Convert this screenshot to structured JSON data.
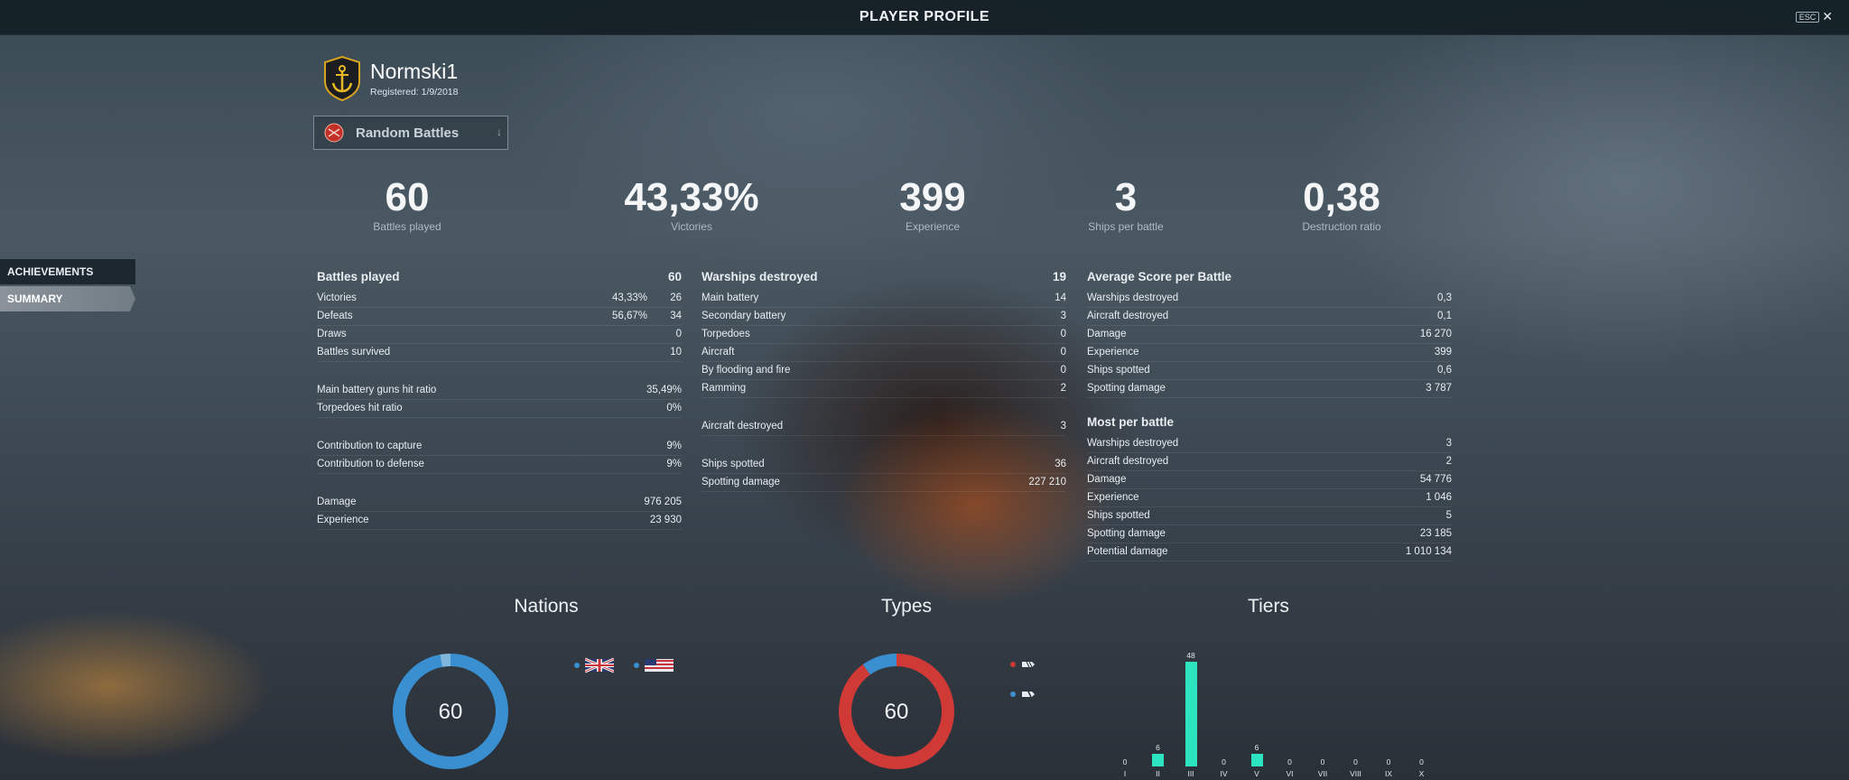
{
  "header": {
    "title": "PLAYER PROFILE",
    "esc_label": "ESC",
    "close_symbol": "✕"
  },
  "sidenav": {
    "items": [
      {
        "label": "ACHIEVEMENTS"
      },
      {
        "label": "SUMMARY"
      }
    ]
  },
  "player": {
    "name": "Normski1",
    "registered": "Registered: 1/9/2018"
  },
  "mode": {
    "label": "Random Battles",
    "arrow": "↓"
  },
  "big_stats": [
    {
      "value": "60",
      "label": "Battles played"
    },
    {
      "value": "43,33%",
      "label": "Victories"
    },
    {
      "value": "399",
      "label": "Experience"
    },
    {
      "value": "3",
      "label": "Ships per battle"
    },
    {
      "value": "0,38",
      "label": "Destruction ratio"
    }
  ],
  "col1": {
    "title": "Battles played",
    "title_value": "60",
    "rows": [
      {
        "k": "Victories",
        "p": "43,33%",
        "v": "26"
      },
      {
        "k": "Defeats",
        "p": "56,67%",
        "v": "34"
      },
      {
        "k": "Draws",
        "p": "",
        "v": "0"
      },
      {
        "k": "Battles survived",
        "p": "",
        "v": "10"
      }
    ],
    "rows2": [
      {
        "k": "Main battery guns hit ratio",
        "v": "35,49%"
      },
      {
        "k": "Torpedoes hit ratio",
        "v": "0%"
      }
    ],
    "rows3": [
      {
        "k": "Contribution to capture",
        "v": "9%"
      },
      {
        "k": "Contribution to defense",
        "v": "9%"
      }
    ],
    "rows4": [
      {
        "k": "Damage",
        "v": "976 205"
      },
      {
        "k": "Experience",
        "v": "23 930"
      }
    ]
  },
  "col2": {
    "title": "Warships destroyed",
    "title_value": "19",
    "rows": [
      {
        "k": "Main battery",
        "v": "14"
      },
      {
        "k": "Secondary battery",
        "v": "3"
      },
      {
        "k": "Torpedoes",
        "v": "0"
      },
      {
        "k": "Aircraft",
        "v": "0"
      },
      {
        "k": "By flooding and fire",
        "v": "0"
      },
      {
        "k": "Ramming",
        "v": "2"
      }
    ],
    "rows2": [
      {
        "k": "Aircraft destroyed",
        "v": "3"
      }
    ],
    "rows3": [
      {
        "k": "Ships spotted",
        "v": "36"
      },
      {
        "k": "Spotting damage",
        "v": "227 210"
      }
    ]
  },
  "col3": {
    "title": "Average Score per Battle",
    "rows": [
      {
        "k": "Warships destroyed",
        "v": "0,3"
      },
      {
        "k": "Aircraft destroyed",
        "v": "0,1"
      },
      {
        "k": "Damage",
        "v": "16 270"
      },
      {
        "k": "Experience",
        "v": "399"
      },
      {
        "k": "Ships spotted",
        "v": "0,6"
      },
      {
        "k": "Spotting damage",
        "v": "3 787"
      }
    ],
    "title2": "Most per battle",
    "rows2": [
      {
        "k": "Warships destroyed",
        "v": "3"
      },
      {
        "k": "Aircraft destroyed",
        "v": "2"
      },
      {
        "k": "Damage",
        "v": "54 776"
      },
      {
        "k": "Experience",
        "v": "1 046"
      },
      {
        "k": "Ships spotted",
        "v": "5"
      },
      {
        "k": "Spotting damage",
        "v": "23 185"
      },
      {
        "k": "Potential damage",
        "v": "1 010 134"
      }
    ]
  },
  "nations": {
    "title": "Nations",
    "total": "60",
    "segments": [
      {
        "color": "#3a8fd0",
        "fraction": 0.97
      },
      {
        "color": "#7fb6de",
        "fraction": 0.03
      }
    ],
    "legend": [
      {
        "color": "#3a8fd0",
        "icon": "uk-flag-icon"
      },
      {
        "color": "#3a8fd0",
        "icon": "us-flag-icon"
      }
    ]
  },
  "types": {
    "title": "Types",
    "total": "60",
    "segments": [
      {
        "color": "#cf3a36",
        "fraction": 0.9
      },
      {
        "color": "#3a8fd0",
        "fraction": 0.1
      }
    ],
    "legend": [
      {
        "color": "#cf3a36",
        "icon": "cruiser-icon"
      },
      {
        "color": "#3a8fd0",
        "icon": "battleship-icon"
      }
    ]
  },
  "tiers": {
    "title": "Tiers",
    "bar_color": "#2ee4c0",
    "items": [
      {
        "label": "I",
        "count": "0",
        "value": 0
      },
      {
        "label": "II",
        "count": "6",
        "value": 6
      },
      {
        "label": "III",
        "count": "48",
        "value": 48
      },
      {
        "label": "IV",
        "count": "0",
        "value": 0
      },
      {
        "label": "V",
        "count": "6",
        "value": 6
      },
      {
        "label": "VI",
        "count": "0",
        "value": 0
      },
      {
        "label": "VII",
        "count": "0",
        "value": 0
      },
      {
        "label": "VIII",
        "count": "0",
        "value": 0
      },
      {
        "label": "IX",
        "count": "0",
        "value": 0
      },
      {
        "label": "X",
        "count": "0",
        "value": 0
      }
    ]
  }
}
